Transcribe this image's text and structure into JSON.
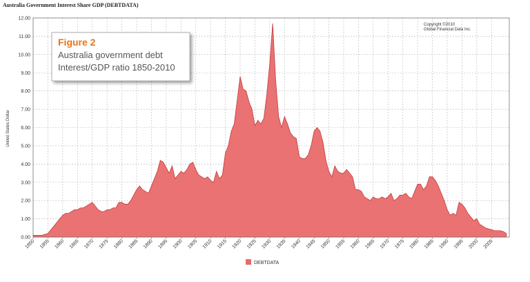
{
  "chart_data": {
    "type": "area",
    "title": "Australia Government Interest Share GDP (DEBTDATA)",
    "y_label": "United States Dollar",
    "copyright": [
      "Copyright ©2010",
      "Global Financial Data Inc."
    ],
    "figure_box": {
      "heading": "Figure 2",
      "line1": "Australia government debt",
      "line2": "Interest/GDP ratio 1850-2010"
    },
    "series": [
      {
        "name": "DEBTDATA",
        "color": "#e96a6c",
        "x": [
          1850,
          1851,
          1852,
          1853,
          1854,
          1855,
          1856,
          1857,
          1858,
          1859,
          1860,
          1861,
          1862,
          1863,
          1864,
          1865,
          1866,
          1867,
          1868,
          1869,
          1870,
          1871,
          1872,
          1873,
          1874,
          1875,
          1876,
          1877,
          1878,
          1879,
          1880,
          1881,
          1882,
          1883,
          1884,
          1885,
          1886,
          1887,
          1888,
          1889,
          1890,
          1891,
          1892,
          1893,
          1894,
          1895,
          1896,
          1897,
          1898,
          1899,
          1900,
          1901,
          1902,
          1903,
          1904,
          1905,
          1906,
          1907,
          1908,
          1909,
          1910,
          1911,
          1912,
          1913,
          1914,
          1915,
          1916,
          1917,
          1918,
          1919,
          1920,
          1921,
          1922,
          1923,
          1924,
          1925,
          1926,
          1927,
          1928,
          1929,
          1930,
          1931,
          1932,
          1933,
          1934,
          1935,
          1936,
          1937,
          1938,
          1939,
          1940,
          1941,
          1942,
          1943,
          1944,
          1945,
          1946,
          1947,
          1948,
          1949,
          1950,
          1951,
          1952,
          1953,
          1954,
          1955,
          1956,
          1957,
          1958,
          1959,
          1960,
          1961,
          1962,
          1963,
          1964,
          1965,
          1966,
          1967,
          1968,
          1969,
          1970,
          1971,
          1972,
          1973,
          1974,
          1975,
          1976,
          1977,
          1978,
          1979,
          1980,
          1981,
          1982,
          1983,
          1984,
          1985,
          1986,
          1987,
          1988,
          1989,
          1990,
          1991,
          1992,
          1993,
          1994,
          1995,
          1996,
          1997,
          1998,
          1999,
          2000,
          2001,
          2002,
          2003,
          2004,
          2005,
          2006,
          2007,
          2008,
          2009,
          2010
        ],
        "values": [
          0.1,
          0.1,
          0.1,
          0.1,
          0.15,
          0.2,
          0.4,
          0.6,
          0.8,
          1.0,
          1.2,
          1.3,
          1.3,
          1.4,
          1.5,
          1.5,
          1.6,
          1.6,
          1.7,
          1.8,
          1.9,
          1.7,
          1.5,
          1.4,
          1.4,
          1.5,
          1.5,
          1.6,
          1.6,
          1.9,
          1.9,
          1.8,
          1.8,
          2.0,
          2.3,
          2.6,
          2.8,
          2.6,
          2.5,
          2.4,
          2.8,
          3.2,
          3.6,
          4.2,
          4.1,
          3.8,
          3.5,
          3.9,
          3.2,
          3.4,
          3.6,
          3.5,
          3.7,
          4.0,
          4.1,
          3.7,
          3.4,
          3.3,
          3.2,
          3.3,
          3.1,
          3.0,
          3.6,
          3.2,
          3.4,
          4.6,
          5.0,
          5.8,
          6.2,
          7.5,
          8.8,
          8.1,
          8.0,
          7.4,
          7.0,
          6.1,
          6.4,
          6.2,
          6.5,
          7.8,
          9.5,
          11.7,
          8.6,
          6.6,
          6.0,
          6.6,
          6.2,
          5.7,
          5.5,
          5.4,
          4.4,
          4.3,
          4.3,
          4.5,
          5.0,
          5.8,
          6.0,
          5.8,
          5.2,
          4.2,
          3.6,
          3.3,
          3.9,
          3.6,
          3.5,
          3.5,
          3.7,
          3.5,
          3.3,
          2.6,
          2.6,
          2.5,
          2.2,
          2.1,
          2.0,
          2.2,
          2.1,
          2.1,
          2.2,
          2.1,
          2.2,
          2.4,
          2.0,
          2.1,
          2.3,
          2.3,
          2.4,
          2.2,
          2.1,
          2.5,
          2.9,
          2.9,
          2.6,
          2.8,
          3.3,
          3.3,
          3.1,
          2.8,
          2.4,
          2.0,
          1.5,
          1.2,
          1.3,
          1.2,
          1.9,
          1.8,
          1.6,
          1.3,
          1.1,
          0.9,
          1.0,
          0.7,
          0.6,
          0.5,
          0.45,
          0.4,
          0.35,
          0.35,
          0.35,
          0.3,
          0.2
        ]
      }
    ],
    "xlim": [
      1850,
      2011
    ],
    "xticks": [
      1850,
      1855,
      1860,
      1865,
      1870,
      1875,
      1880,
      1885,
      1890,
      1895,
      1900,
      1905,
      1910,
      1915,
      1920,
      1925,
      1930,
      1935,
      1940,
      1945,
      1950,
      1955,
      1960,
      1965,
      1970,
      1975,
      1980,
      1985,
      1990,
      1995,
      2000,
      2005
    ],
    "ylim": [
      0,
      12
    ],
    "yticks": [
      {
        "value": 0,
        "label": "0.00"
      },
      {
        "value": 1,
        "label": "1.00"
      },
      {
        "value": 2,
        "label": "2.00"
      },
      {
        "value": 3,
        "label": "3.00"
      },
      {
        "value": 4,
        "label": "4.00"
      },
      {
        "value": 5,
        "label": "5.00"
      },
      {
        "value": 6,
        "label": "6.00"
      },
      {
        "value": 7,
        "label": "7.00"
      },
      {
        "value": 8,
        "label": "8.00"
      },
      {
        "value": 9,
        "label": "9.00"
      },
      {
        "value": 10,
        "label": "10.00"
      },
      {
        "value": 11,
        "label": "11.00"
      },
      {
        "value": 12,
        "label": "12.00"
      }
    ],
    "grid": true,
    "legend": "bottom"
  }
}
